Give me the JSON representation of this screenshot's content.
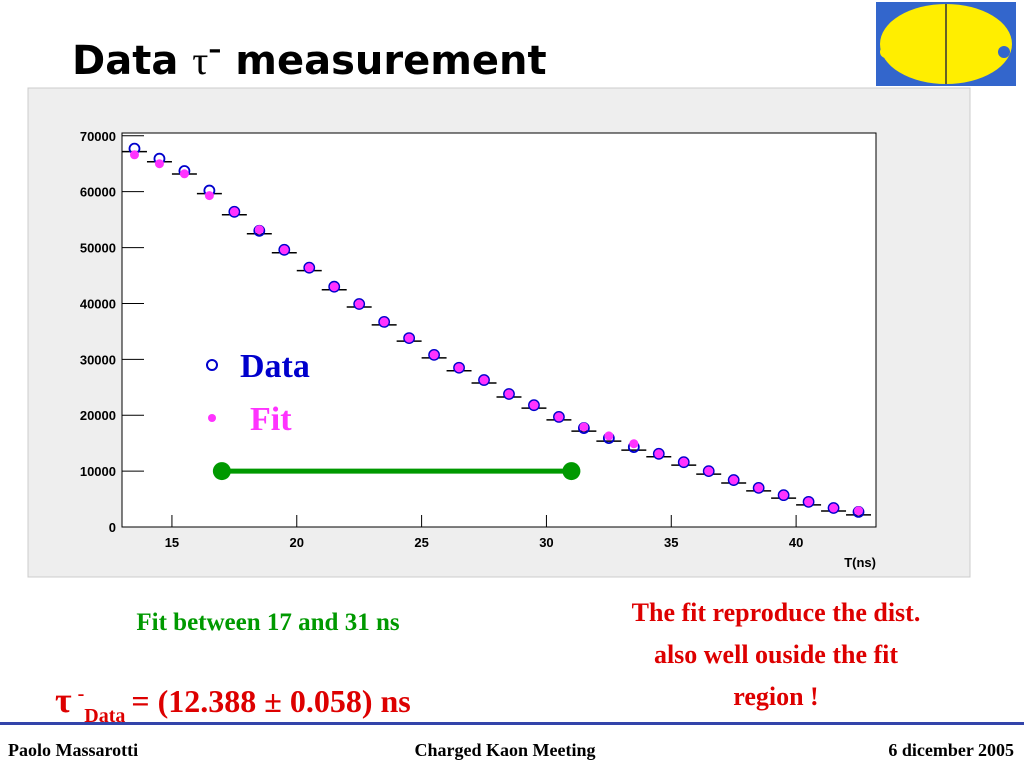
{
  "slide": {
    "title": {
      "text": "Data",
      "symbol": "τ",
      "sup": "–",
      "rest": "measurement"
    },
    "fit_note": "Fit between 17 and 31 ns",
    "comment": [
      "The fit reproduce the dist.",
      "also well ouside the fit",
      "region !"
    ],
    "result": {
      "symbol": "τ",
      "sup": "-",
      "sub": "Data",
      "text": "= (12.388 ± 0.058) ns"
    },
    "footer": {
      "left": "Paolo Massarotti",
      "center": "Charged Kaon Meeting",
      "right": "6 dicember 2005"
    }
  },
  "chart_data": {
    "type": "scatter",
    "x_label": "T(ns)",
    "xlim": [
      13,
      43.2
    ],
    "ylim": [
      0,
      70500
    ],
    "xticks": [
      15,
      20,
      25,
      30,
      35,
      40
    ],
    "yticks": [
      0,
      10000,
      20000,
      30000,
      40000,
      50000,
      60000,
      70000
    ],
    "x": [
      13.5,
      14.5,
      15.5,
      16.5,
      17.5,
      18.5,
      19.5,
      20.5,
      21.5,
      22.5,
      23.5,
      24.5,
      25.5,
      26.5,
      27.5,
      28.5,
      29.5,
      30.5,
      31.5,
      32.5,
      33.5,
      34.5,
      35.5,
      36.5,
      37.5,
      38.5,
      39.5,
      40.5,
      41.5,
      42.5
    ],
    "series": [
      {
        "name": "Data",
        "color": "#0000cc",
        "marker": "open",
        "values": [
          67700,
          65900,
          63700,
          60200,
          56400,
          53000,
          49600,
          46400,
          43000,
          39900,
          36700,
          33800,
          30800,
          28500,
          26300,
          23800,
          21800,
          19700,
          17700,
          15900,
          14300,
          13100,
          11600,
          10000,
          8400,
          7000,
          5700,
          4500,
          3400,
          2700
        ]
      },
      {
        "name": "Fit",
        "color": "#ff33ff",
        "marker": "filled",
        "values": [
          66600,
          65000,
          63200,
          59300,
          56400,
          53200,
          49600,
          46400,
          43000,
          39900,
          36700,
          33800,
          30800,
          28500,
          26300,
          23800,
          21800,
          19700,
          17900,
          16300,
          14900,
          13100,
          11600,
          10000,
          8400,
          7000,
          5700,
          4500,
          3400,
          2900
        ]
      }
    ],
    "fit_range": {
      "x": [
        17,
        31
      ],
      "y": 10000,
      "color": "#009900"
    }
  }
}
